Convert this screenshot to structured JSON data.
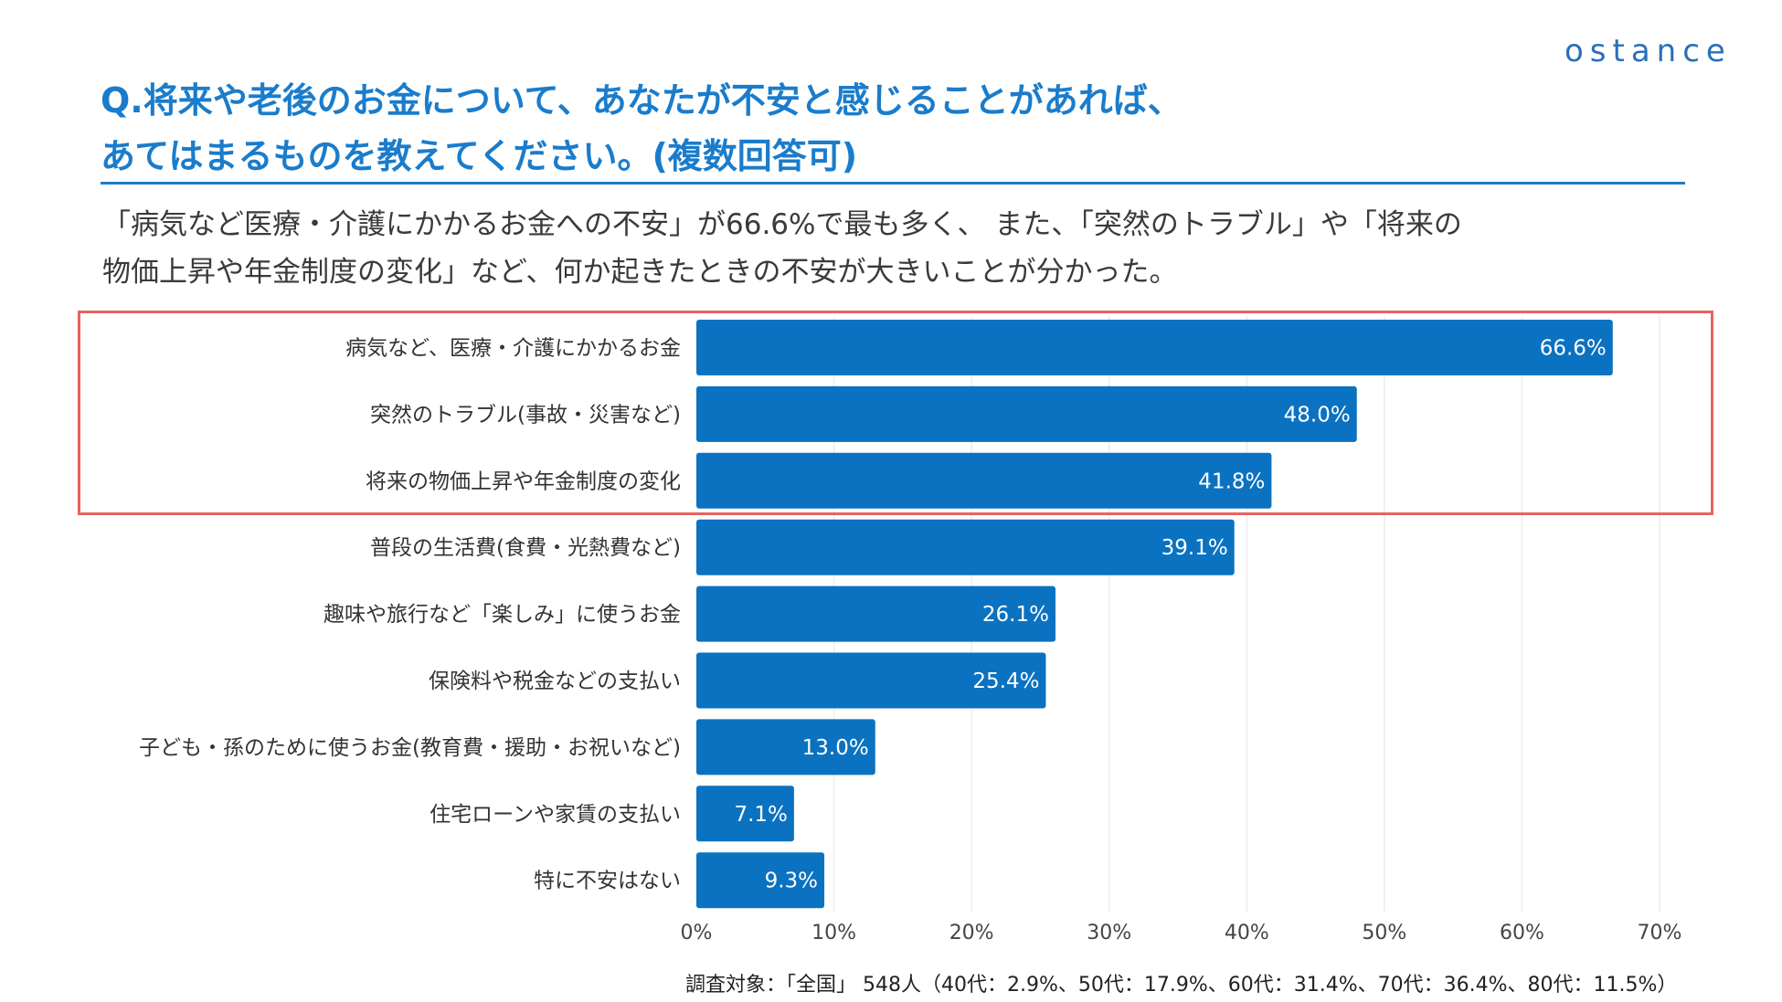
{
  "logo": "ostance",
  "title_lines": [
    "Q.将来や老後のお金について、あなたが不安と感じることがあれば、",
    "あてはまるものを教えてください。(複数回答可)"
  ],
  "subtitle_lines": [
    "「病気など医療・介護にかかるお金への不安」が66.6%で最も多く、 また、「突然のトラブル」や「将来の",
    "物価上昇や年金制度の変化」など、何か起きたときの不安が大きいことが分かった。"
  ],
  "footer": "調査対象：「全国」 548人（40代：2.9%、50代：17.9%、60代：31.4%、70代：36.4%、80代：11.5%）",
  "chart_data": {
    "type": "bar",
    "orientation": "horizontal",
    "categories": [
      "病気など、医療・介護にかかるお金",
      "突然のトラブル(事故・災害など)",
      "将来の物価上昇や年金制度の変化",
      "普段の生活費(食費・光熱費など)",
      "趣味や旅行など「楽しみ」に使うお金",
      "保険料や税金などの支払い",
      "子ども・孫のために使うお金(教育費・援助・お祝いなど)",
      "住宅ローンや家賃の支払い",
      "特に不安はない"
    ],
    "values": [
      66.6,
      48.0,
      41.8,
      39.1,
      26.1,
      25.4,
      13.0,
      7.1,
      9.3
    ],
    "data_labels": [
      "66.6%",
      "48.0%",
      "41.8%",
      "39.1%",
      "26.1%",
      "25.4%",
      "13.0%",
      "7.1%",
      "9.3%"
    ],
    "xlim": [
      0,
      70
    ],
    "xticks": [
      "0%",
      "10%",
      "20%",
      "30%",
      "40%",
      "50%",
      "60%",
      "70%"
    ],
    "grid": true,
    "highlighted_categories": [
      0,
      1,
      2
    ],
    "bar_color": "#0b72c1",
    "highlight_color": "#e8625f"
  }
}
